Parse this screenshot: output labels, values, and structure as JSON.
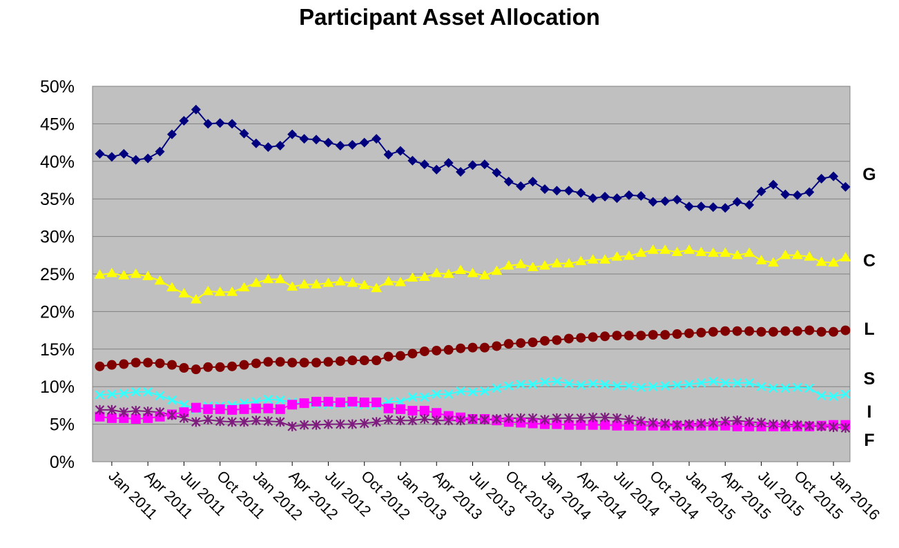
{
  "chart_data": {
    "type": "line",
    "title": "Participant Asset Allocation",
    "xlabel": "",
    "ylabel": "",
    "ylim": [
      0,
      50
    ],
    "yticks": [
      "0%",
      "5%",
      "10%",
      "15%",
      "20%",
      "25%",
      "30%",
      "35%",
      "40%",
      "45%",
      "50%"
    ],
    "grid": "horizontal",
    "legend": "end-of-line labels",
    "x_tick_labels": [
      "Jan 2011",
      "Apr 2011",
      "Jul 2011",
      "Oct 2011",
      "Jan 2012",
      "Apr 2012",
      "Jul 2012",
      "Oct 2012",
      "Jan 2013",
      "Apr 2013",
      "Jul 2013",
      "Oct 2013",
      "Jan 2014",
      "Apr 2014",
      "Jul 2014",
      "Oct 2014",
      "Jan 2015",
      "Apr 2015",
      "Jul 2015",
      "Oct 2015",
      "Jan 2016"
    ],
    "x": [
      "Dec 2010",
      "Jan 2011",
      "Feb 2011",
      "Mar 2011",
      "Apr 2011",
      "May 2011",
      "Jun 2011",
      "Jul 2011",
      "Aug 2011",
      "Sep 2011",
      "Oct 2011",
      "Nov 2011",
      "Dec 2011",
      "Jan 2012",
      "Feb 2012",
      "Mar 2012",
      "Apr 2012",
      "May 2012",
      "Jun 2012",
      "Jul 2012",
      "Aug 2012",
      "Sep 2012",
      "Oct 2012",
      "Nov 2012",
      "Dec 2012",
      "Jan 2013",
      "Feb 2013",
      "Mar 2013",
      "Apr 2013",
      "May 2013",
      "Jun 2013",
      "Jul 2013",
      "Aug 2013",
      "Sep 2013",
      "Oct 2013",
      "Nov 2013",
      "Dec 2013",
      "Jan 2014",
      "Feb 2014",
      "Mar 2014",
      "Apr 2014",
      "May 2014",
      "Jun 2014",
      "Jul 2014",
      "Aug 2014",
      "Sep 2014",
      "Oct 2014",
      "Nov 2014",
      "Dec 2014",
      "Jan 2015",
      "Feb 2015",
      "Mar 2015",
      "Apr 2015",
      "May 2015",
      "Jun 2015",
      "Jul 2015",
      "Aug 2015",
      "Sep 2015",
      "Oct 2015",
      "Nov 2015",
      "Dec 2015",
      "Jan 2016",
      "Feb 2016"
    ],
    "series": [
      {
        "name": "G",
        "color": "#00007F",
        "marker": "diamond",
        "values": [
          41.0,
          40.6,
          41.0,
          40.2,
          40.4,
          41.3,
          43.6,
          45.4,
          46.9,
          45.0,
          45.1,
          45.0,
          43.7,
          42.4,
          41.9,
          42.1,
          43.6,
          43.0,
          42.9,
          42.5,
          42.1,
          42.2,
          42.5,
          43.0,
          40.9,
          41.4,
          40.1,
          39.6,
          38.9,
          39.8,
          38.6,
          39.5,
          39.6,
          38.5,
          37.3,
          36.7,
          37.3,
          36.3,
          36.1,
          36.1,
          35.8,
          35.1,
          35.3,
          35.1,
          35.5,
          35.4,
          34.6,
          34.7,
          34.9,
          34.0,
          34.0,
          33.9,
          33.8,
          34.6,
          34.2,
          36.0,
          36.9,
          35.6,
          35.5,
          35.9,
          37.7,
          38.0,
          36.6
        ]
      },
      {
        "name": "C",
        "color": "#FFFF00",
        "marker": "triangle",
        "values": [
          24.9,
          25.1,
          24.8,
          25.0,
          24.7,
          24.1,
          23.2,
          22.4,
          21.6,
          22.7,
          22.6,
          22.6,
          23.2,
          23.8,
          24.3,
          24.3,
          23.3,
          23.6,
          23.6,
          23.8,
          24.0,
          23.8,
          23.5,
          23.1,
          24.0,
          23.9,
          24.5,
          24.6,
          25.1,
          25.0,
          25.5,
          25.1,
          24.8,
          25.4,
          26.1,
          26.3,
          25.9,
          26.1,
          26.4,
          26.4,
          26.7,
          26.9,
          26.9,
          27.3,
          27.4,
          27.8,
          28.2,
          28.2,
          27.9,
          28.2,
          27.9,
          27.8,
          27.8,
          27.5,
          27.8,
          26.8,
          26.5,
          27.5,
          27.5,
          27.3,
          26.6,
          26.5,
          27.2
        ]
      },
      {
        "name": "L",
        "color": "#800000",
        "marker": "circle",
        "values": [
          12.7,
          12.9,
          13.0,
          13.2,
          13.2,
          13.1,
          12.9,
          12.5,
          12.3,
          12.6,
          12.6,
          12.7,
          12.9,
          13.1,
          13.3,
          13.3,
          13.2,
          13.2,
          13.2,
          13.3,
          13.4,
          13.5,
          13.5,
          13.5,
          14.0,
          14.1,
          14.4,
          14.7,
          14.8,
          14.9,
          15.1,
          15.2,
          15.2,
          15.4,
          15.7,
          15.8,
          15.9,
          16.1,
          16.2,
          16.4,
          16.5,
          16.6,
          16.7,
          16.8,
          16.8,
          16.8,
          16.9,
          16.9,
          17.0,
          17.1,
          17.2,
          17.3,
          17.4,
          17.4,
          17.4,
          17.3,
          17.3,
          17.4,
          17.4,
          17.5,
          17.3,
          17.3,
          17.5
        ]
      },
      {
        "name": "S",
        "color": "#33FFFF",
        "marker": "x",
        "values": [
          8.9,
          9.0,
          9.1,
          9.3,
          9.3,
          8.8,
          8.2,
          7.6,
          7.0,
          7.4,
          7.4,
          7.5,
          7.8,
          8.0,
          8.3,
          8.2,
          7.9,
          7.8,
          7.7,
          7.6,
          7.7,
          7.7,
          7.6,
          7.5,
          8.0,
          8.0,
          8.6,
          8.6,
          9.0,
          9.0,
          9.4,
          9.3,
          9.4,
          9.8,
          10.1,
          10.3,
          10.3,
          10.6,
          10.7,
          10.4,
          10.2,
          10.4,
          10.3,
          10.1,
          10.1,
          9.9,
          10.0,
          10.1,
          10.2,
          10.3,
          10.5,
          10.7,
          10.5,
          10.5,
          10.5,
          10.0,
          9.8,
          9.8,
          9.9,
          9.8,
          8.8,
          8.7,
          9.0
        ]
      },
      {
        "name": "I",
        "color": "#FF00FF",
        "marker": "square",
        "values": [
          6.0,
          5.8,
          5.8,
          5.7,
          5.8,
          6.0,
          6.3,
          6.6,
          7.2,
          7.0,
          7.0,
          6.9,
          7.0,
          7.1,
          7.1,
          7.0,
          7.6,
          7.8,
          8.0,
          8.0,
          7.9,
          8.0,
          7.9,
          7.9,
          7.1,
          7.0,
          6.8,
          6.8,
          6.5,
          6.1,
          5.9,
          5.7,
          5.7,
          5.5,
          5.3,
          5.2,
          5.1,
          5.0,
          5.0,
          4.9,
          4.9,
          4.9,
          4.9,
          4.8,
          4.8,
          4.8,
          4.8,
          4.8,
          4.8,
          4.8,
          4.8,
          4.8,
          4.8,
          4.7,
          4.7,
          4.7,
          4.7,
          4.7,
          4.7,
          4.7,
          4.8,
          4.9,
          4.9
        ]
      },
      {
        "name": "F",
        "color": "#7F1A7F",
        "marker": "star",
        "values": [
          6.9,
          6.9,
          6.6,
          6.8,
          6.7,
          6.6,
          6.2,
          5.8,
          5.3,
          5.6,
          5.4,
          5.3,
          5.3,
          5.5,
          5.4,
          5.3,
          4.7,
          4.9,
          4.9,
          5.0,
          5.0,
          5.0,
          5.1,
          5.3,
          5.6,
          5.5,
          5.5,
          5.7,
          5.5,
          5.5,
          5.5,
          5.7,
          5.6,
          5.7,
          5.8,
          5.8,
          5.8,
          5.6,
          5.8,
          5.8,
          5.8,
          5.9,
          5.9,
          5.8,
          5.6,
          5.4,
          5.2,
          5.1,
          4.9,
          5.0,
          5.1,
          5.2,
          5.4,
          5.5,
          5.3,
          5.2,
          5.0,
          5.0,
          4.9,
          4.8,
          4.7,
          4.6,
          4.5
        ]
      }
    ],
    "plot_bg": "#C0C0C0",
    "gridline_color": "#808080"
  }
}
